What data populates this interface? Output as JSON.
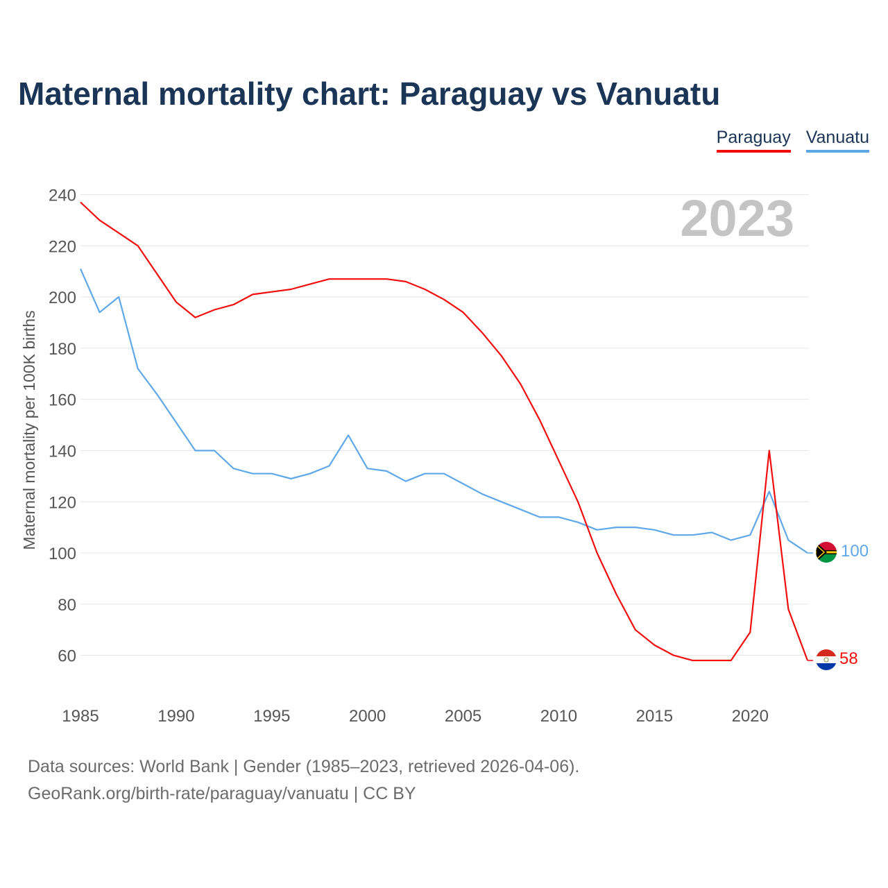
{
  "title": "Maternal mortality chart: Paraguay vs Vanuatu",
  "legend": {
    "paraguay": "Paraguay",
    "vanuatu": "Vanuatu"
  },
  "year_watermark": "2023",
  "footer": {
    "line1": "Data sources: World Bank | Gender (1985–2023, retrieved 2026-04-06).",
    "line2": "GeoRank.org/birth-rate/paraguay/vanuatu | CC BY"
  },
  "chart_data": {
    "type": "line",
    "title": "Maternal mortality chart: Paraguay vs Vanuatu",
    "xlabel": "",
    "ylabel": "Maternal mortality per 100K births",
    "xlim": [
      1985,
      2023
    ],
    "ylim": [
      45,
      245
    ],
    "y_ticks": [
      60,
      80,
      100,
      120,
      140,
      160,
      180,
      200,
      220,
      240
    ],
    "x_ticks": [
      1985,
      1990,
      1995,
      2000,
      2005,
      2010,
      2015,
      2020
    ],
    "x": [
      1985,
      1986,
      1987,
      1988,
      1989,
      1990,
      1991,
      1992,
      1993,
      1994,
      1995,
      1996,
      1997,
      1998,
      1999,
      2000,
      2001,
      2002,
      2003,
      2004,
      2005,
      2006,
      2007,
      2008,
      2009,
      2010,
      2011,
      2012,
      2013,
      2014,
      2015,
      2016,
      2017,
      2018,
      2019,
      2020,
      2021,
      2022,
      2023
    ],
    "series": [
      {
        "name": "Paraguay",
        "color": "#f20d0d",
        "end_label": "58",
        "values": [
          237,
          230,
          225,
          220,
          209,
          198,
          192,
          195,
          197,
          201,
          202,
          203,
          205,
          207,
          207,
          207,
          207,
          206,
          203,
          199,
          194,
          186,
          177,
          166,
          152,
          136,
          120,
          100,
          84,
          70,
          64,
          60,
          58,
          58,
          58,
          69,
          140,
          78,
          58
        ]
      },
      {
        "name": "Vanuatu",
        "color": "#5ea8e8",
        "end_label": "100",
        "values": [
          211,
          194,
          200,
          172,
          162,
          151,
          140,
          140,
          133,
          131,
          131,
          129,
          131,
          134,
          146,
          133,
          132,
          128,
          131,
          131,
          127,
          123,
          120,
          117,
          114,
          114,
          112,
          109,
          110,
          110,
          109,
          107,
          107,
          108,
          105,
          107,
          124,
          105,
          100
        ]
      }
    ]
  }
}
